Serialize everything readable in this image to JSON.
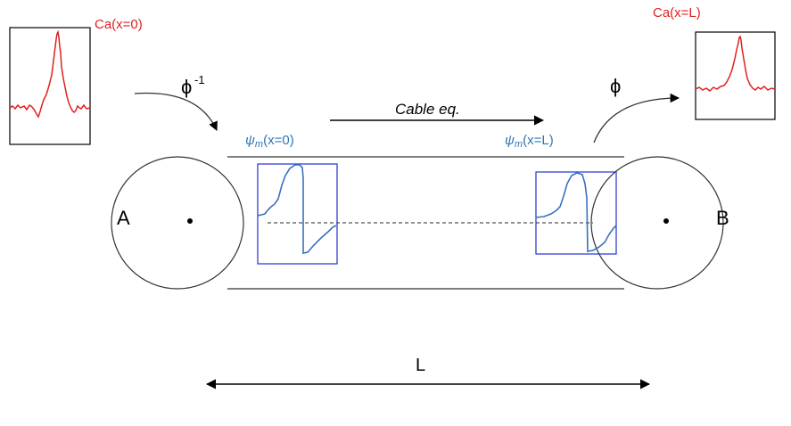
{
  "labels": {
    "ca_left": "Ca(x=0)",
    "ca_right": "Ca(x=L)",
    "phi_inverse": "ϕ",
    "phi_inverse_sup": "-1",
    "phi": "ϕ",
    "cable_eq": "Cable eq.",
    "psi_left_symbol": "ψ",
    "psi_left_sub": "m",
    "psi_left_arg": "(x=0)",
    "psi_right_symbol": "ψ",
    "psi_right_sub": "m",
    "psi_right_arg": "(x=L)",
    "node_a": "A",
    "node_b": "B",
    "length": "L"
  },
  "colors": {
    "ca_trace": "#e02020",
    "psi_trace": "#3a6fc0",
    "psi_box": "#2233cc",
    "psi_label": "#2e74b5",
    "line": "#000000",
    "cable": "#444444"
  }
}
